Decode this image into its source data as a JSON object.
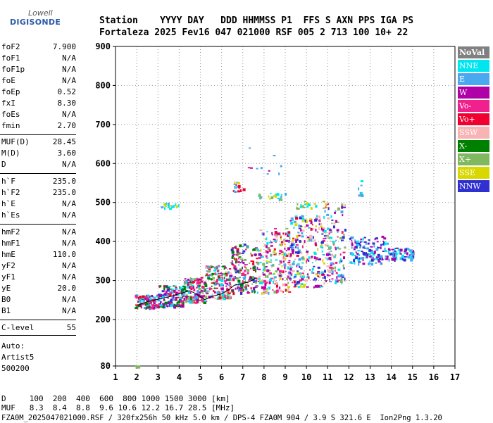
{
  "logo": {
    "line1": "Lowell",
    "line2": "DIGISONDE"
  },
  "header": {
    "labels": "Station    YYYY DAY   DDD HHMMSS P1  FFS S AXN PPS IGA PS",
    "values": "Fortaleza 2025 Fev16 047 021000 RSF 005 2 713 100 10+ 22"
  },
  "params_groups": [
    [
      {
        "label": "foF2",
        "value": "7.900"
      },
      {
        "label": "foF1",
        "value": "N/A"
      },
      {
        "label": "foF1p",
        "value": "N/A"
      },
      {
        "label": "foE",
        "value": "N/A"
      },
      {
        "label": "foEp",
        "value": "0.52"
      },
      {
        "label": "fxI",
        "value": "8.30"
      },
      {
        "label": "foEs",
        "value": "N/A"
      },
      {
        "label": "fmin",
        "value": "2.70"
      }
    ],
    [
      {
        "label": "MUF(D)",
        "value": "28.45"
      },
      {
        "label": "M(D)",
        "value": "3.60"
      },
      {
        "label": "D",
        "value": "N/A"
      }
    ],
    [
      {
        "label": "h`F",
        "value": "235.0"
      },
      {
        "label": "h`F2",
        "value": "235.0"
      },
      {
        "label": "h`E",
        "value": "N/A"
      },
      {
        "label": "h`Es",
        "value": "N/A"
      }
    ],
    [
      {
        "label": "hmF2",
        "value": "N/A"
      },
      {
        "label": "hmF1",
        "value": "N/A"
      },
      {
        "label": "hmE",
        "value": "110.0"
      },
      {
        "label": "yF2",
        "value": "N/A"
      },
      {
        "label": "yF1",
        "value": "N/A"
      },
      {
        "label": "yE",
        "value": "20.0"
      },
      {
        "label": "B0",
        "value": "N/A"
      },
      {
        "label": "B1",
        "value": "N/A"
      }
    ],
    [
      {
        "label": "C-level",
        "value": "55"
      }
    ]
  ],
  "auto": [
    "Auto:",
    "Artist5",
    "500200"
  ],
  "legend": [
    {
      "label": "NoVal",
      "color": "#808080"
    },
    {
      "label": "NNE",
      "color": "#00e6f0"
    },
    {
      "label": "E",
      "color": "#4aa8f0"
    },
    {
      "label": "W",
      "color": "#b000a8"
    },
    {
      "label": "Vo-",
      "color": "#f0208c"
    },
    {
      "label": "Vo+",
      "color": "#f00030"
    },
    {
      "label": "SSW",
      "color": "#f8b4b4"
    },
    {
      "label": "X-",
      "color": "#008000"
    },
    {
      "label": "X+",
      "color": "#80b860"
    },
    {
      "label": "SSE",
      "color": "#d8d800"
    },
    {
      "label": "NNW",
      "color": "#3030d0"
    }
  ],
  "bottom": {
    "line1": "D     100  200  400  600  800 1000 1500 3000 [km]",
    "line2": "MUF   8.3  8.4  8.8  9.6 10.6 12.2 16.7 28.5 [MHz]",
    "line3": "FZA0M_2025047021000.RSF / 320fx256h 50 kHz 5.0 km / DPS-4 FZA0M 904 / 3.9 S 321.6 E  Ion2Png 1.3.20"
  },
  "chart_data": {
    "type": "scatter",
    "xlim": [
      1,
      17
    ],
    "ylim": [
      80,
      900
    ],
    "xticks": [
      1,
      2,
      3,
      4,
      5,
      6,
      7,
      8,
      9,
      10,
      11,
      12,
      13,
      14,
      15,
      16,
      17
    ],
    "yticks": [
      80,
      200,
      300,
      400,
      500,
      600,
      700,
      800,
      900
    ],
    "grid": true,
    "trace_line": [
      [
        2.0,
        236
      ],
      [
        2.5,
        246
      ],
      [
        3.0,
        252
      ],
      [
        3.5,
        258
      ],
      [
        4.0,
        266
      ],
      [
        4.5,
        274
      ],
      [
        4.8,
        266
      ],
      [
        5.2,
        251
      ],
      [
        5.6,
        260
      ],
      [
        6.0,
        266
      ],
      [
        6.3,
        275
      ],
      [
        6.6,
        288
      ],
      [
        7.0,
        292
      ],
      [
        7.3,
        297
      ],
      [
        7.6,
        305
      ]
    ],
    "clusters": [
      {
        "x": [
          1.9,
          2.1
        ],
        "y": [
          80,
          85
        ],
        "colors": [
          "NNE",
          "X+"
        ],
        "n": 5
      },
      {
        "x": [
          1.9,
          3.0
        ],
        "y": [
          230,
          265
        ],
        "colors": [
          "Vo-",
          "Vo+",
          "E",
          "W",
          "NNE",
          "X-"
        ],
        "n": 120
      },
      {
        "x": [
          3.0,
          4.2
        ],
        "y": [
          235,
          290
        ],
        "colors": [
          "Vo-",
          "Vo+",
          "E",
          "W",
          "NNE",
          "X-",
          "NNW"
        ],
        "n": 170
      },
      {
        "x": [
          4.2,
          5.2
        ],
        "y": [
          245,
          310
        ],
        "colors": [
          "Vo-",
          "Vo+",
          "E",
          "W",
          "NNE",
          "X-",
          "X+"
        ],
        "n": 150
      },
      {
        "x": [
          5.2,
          6.4
        ],
        "y": [
          255,
          340
        ],
        "colors": [
          "Vo-",
          "Vo+",
          "E",
          "W",
          "X-",
          "NNE",
          "X+",
          "SSW"
        ],
        "n": 170
      },
      {
        "x": [
          6.4,
          7.6
        ],
        "y": [
          270,
          395
        ],
        "colors": [
          "Vo-",
          "Vo+",
          "W",
          "X-",
          "X+",
          "E",
          "NNW"
        ],
        "n": 170
      },
      {
        "x": [
          7.6,
          9.2
        ],
        "y": [
          270,
          435
        ],
        "colors": [
          "W",
          "Vo-",
          "Vo+",
          "SSW",
          "NNE",
          "E",
          "SSE",
          "X+"
        ],
        "n": 230
      },
      {
        "x": [
          9.2,
          10.8
        ],
        "y": [
          285,
          470
        ],
        "colors": [
          "NNE",
          "E",
          "W",
          "SSE",
          "SSW",
          "Vo-",
          "Vo+",
          "NNW"
        ],
        "n": 230
      },
      {
        "x": [
          10.8,
          11.8
        ],
        "y": [
          295,
          500
        ],
        "colors": [
          "NNE",
          "E",
          "W",
          "Vo-",
          "SSW",
          "X+",
          "NNW"
        ],
        "n": 150
      },
      {
        "x": [
          12.0,
          13.8
        ],
        "y": [
          345,
          415
        ],
        "colors": [
          "NNE",
          "E",
          "NNW",
          "W"
        ],
        "n": 130
      },
      {
        "x": [
          13.8,
          15.0
        ],
        "y": [
          355,
          385
        ],
        "colors": [
          "NNE",
          "E",
          "NNW",
          "W"
        ],
        "n": 70
      },
      {
        "x": [
          3.0,
          4.0
        ],
        "y": [
          485,
          500
        ],
        "colors": [
          "E",
          "SSE",
          "NNE"
        ],
        "n": 18
      },
      {
        "x": [
          6.5,
          7.0
        ],
        "y": [
          530,
          555
        ],
        "colors": [
          "SSE",
          "Vo+",
          "E"
        ],
        "n": 18
      },
      {
        "x": [
          7.7,
          9.0
        ],
        "y": [
          510,
          525
        ],
        "colors": [
          "SSE",
          "E",
          "NNE",
          "X+"
        ],
        "n": 22
      },
      {
        "x": [
          9.5,
          11.0
        ],
        "y": [
          485,
          505
        ],
        "colors": [
          "SSE",
          "NNE",
          "X+"
        ],
        "n": 25
      },
      {
        "x": [
          12.4,
          12.7
        ],
        "y": [
          520,
          560
        ],
        "colors": [
          "E",
          "NNE"
        ],
        "n": 8
      },
      {
        "x": [
          7.0,
          8.9
        ],
        "y": [
          575,
          650
        ],
        "colors": [
          "W",
          "Vo-",
          "E"
        ],
        "n": 10
      }
    ]
  }
}
